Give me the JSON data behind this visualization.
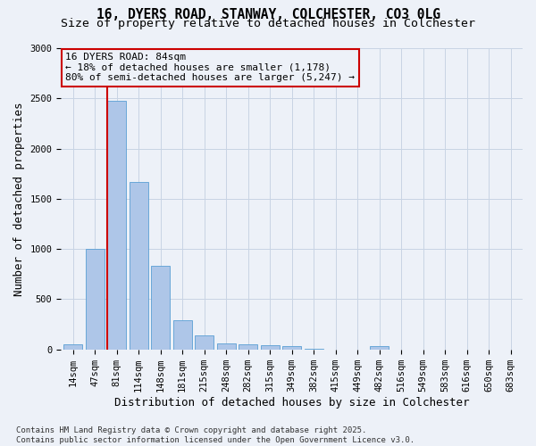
{
  "title_line1": "16, DYERS ROAD, STANWAY, COLCHESTER, CO3 0LG",
  "title_line2": "Size of property relative to detached houses in Colchester",
  "xlabel": "Distribution of detached houses by size in Colchester",
  "ylabel": "Number of detached properties",
  "categories": [
    "14sqm",
    "47sqm",
    "81sqm",
    "114sqm",
    "148sqm",
    "181sqm",
    "215sqm",
    "248sqm",
    "282sqm",
    "315sqm",
    "349sqm",
    "382sqm",
    "415sqm",
    "449sqm",
    "482sqm",
    "516sqm",
    "549sqm",
    "583sqm",
    "616sqm",
    "650sqm",
    "683sqm"
  ],
  "values": [
    50,
    1000,
    2480,
    1670,
    830,
    290,
    140,
    60,
    55,
    42,
    30,
    5,
    0,
    0,
    35,
    0,
    0,
    0,
    0,
    0,
    0
  ],
  "bar_color": "#aec6e8",
  "bar_edgecolor": "#5a9fd4",
  "grid_color": "#c8d4e4",
  "background_color": "#edf1f8",
  "vline_color": "#cc0000",
  "vline_bin": 2,
  "annotation_text": "16 DYERS ROAD: 84sqm\n← 18% of detached houses are smaller (1,178)\n80% of semi-detached houses are larger (5,247) →",
  "annotation_box_edgecolor": "#cc0000",
  "ylim": [
    0,
    3000
  ],
  "yticks": [
    0,
    500,
    1000,
    1500,
    2000,
    2500,
    3000
  ],
  "footer_text": "Contains HM Land Registry data © Crown copyright and database right 2025.\nContains public sector information licensed under the Open Government Licence v3.0.",
  "title_fontsize": 10.5,
  "subtitle_fontsize": 9.5,
  "axis_label_fontsize": 9,
  "tick_fontsize": 7.5,
  "annotation_fontsize": 8,
  "footer_fontsize": 6.5
}
